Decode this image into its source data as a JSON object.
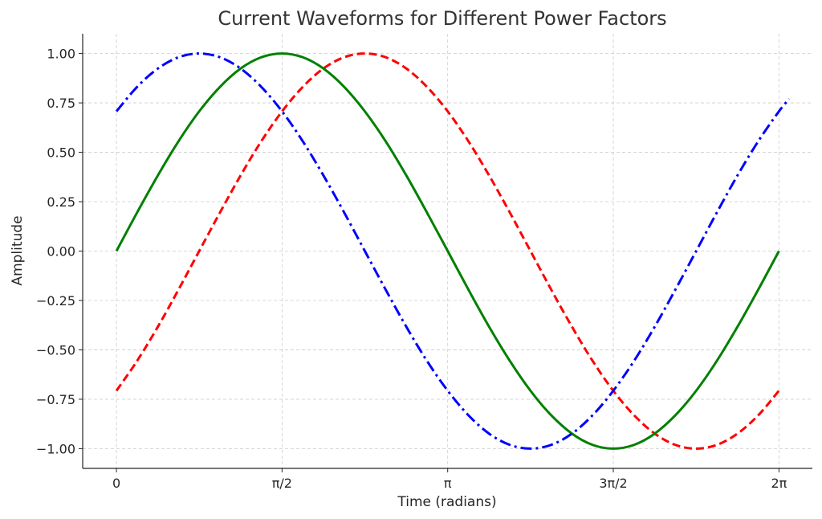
{
  "chart_data": {
    "type": "line",
    "title": "Current Waveforms for Different Power Factors",
    "xlabel": "Time (radians)",
    "ylabel": "Amplitude",
    "xlim": [
      -0.32,
      6.6
    ],
    "ylim": [
      -1.1,
      1.1
    ],
    "grid": true,
    "xticks": [
      0,
      1.5708,
      3.1416,
      4.7124,
      6.2832
    ],
    "xtick_labels": [
      "0",
      "π/2",
      "π",
      "3π/2",
      "2π"
    ],
    "yticks": [
      1.0,
      0.75,
      0.5,
      0.25,
      0.0,
      -0.25,
      -0.5,
      -0.75,
      -1.0
    ],
    "ytick_labels": [
      "1.00",
      "0.75",
      "0.50",
      "0.25",
      "0.00",
      "−0.25",
      "−0.50",
      "−0.75",
      "−1.00"
    ],
    "x": [
      0,
      0.196,
      0.393,
      0.589,
      0.785,
      0.982,
      1.178,
      1.374,
      1.571,
      1.767,
      1.963,
      2.16,
      2.356,
      2.553,
      2.749,
      2.945,
      3.142,
      3.338,
      3.534,
      3.731,
      3.927,
      4.123,
      4.32,
      4.516,
      4.712,
      4.909,
      5.105,
      5.301,
      5.498,
      5.694,
      5.89,
      6.087,
      6.283
    ],
    "series": [
      {
        "color": "#ff0000",
        "style": "dashed",
        "values": [
          -0.707,
          -0.556,
          -0.383,
          -0.195,
          0,
          0.195,
          0.383,
          0.556,
          0.707,
          0.831,
          0.924,
          0.981,
          1,
          0.981,
          0.924,
          0.831,
          0.707,
          0.556,
          0.383,
          0.195,
          0,
          -0.195,
          -0.383,
          -0.556,
          -0.707,
          -0.831,
          -0.924,
          -0.981,
          -1,
          -0.981,
          -0.924,
          -0.831,
          -0.707
        ]
      },
      {
        "color": "#008000",
        "style": "solid",
        "values": [
          0,
          0.195,
          0.383,
          0.556,
          0.707,
          0.831,
          0.924,
          0.981,
          1,
          0.981,
          0.924,
          0.831,
          0.707,
          0.556,
          0.383,
          0.195,
          0,
          -0.195,
          -0.383,
          -0.556,
          -0.707,
          -0.831,
          -0.924,
          -0.981,
          -1,
          -0.981,
          -0.924,
          -0.831,
          -0.707,
          -0.556,
          -0.383,
          -0.195,
          0
        ]
      },
      {
        "color": "#0000ff",
        "style": "dashdot",
        "x_extra": [
          6.38
        ],
        "values_extra": [
          0.77
        ],
        "values": [
          0.707,
          0.831,
          0.924,
          0.981,
          1,
          0.981,
          0.924,
          0.831,
          0.707,
          0.556,
          0.383,
          0.195,
          0,
          -0.195,
          -0.383,
          -0.556,
          -0.707,
          -0.831,
          -0.924,
          -0.981,
          -1,
          -0.981,
          -0.924,
          -0.831,
          -0.707,
          -0.556,
          -0.383,
          -0.195,
          0,
          0.195,
          0.383,
          0.556,
          0.707
        ]
      }
    ]
  }
}
